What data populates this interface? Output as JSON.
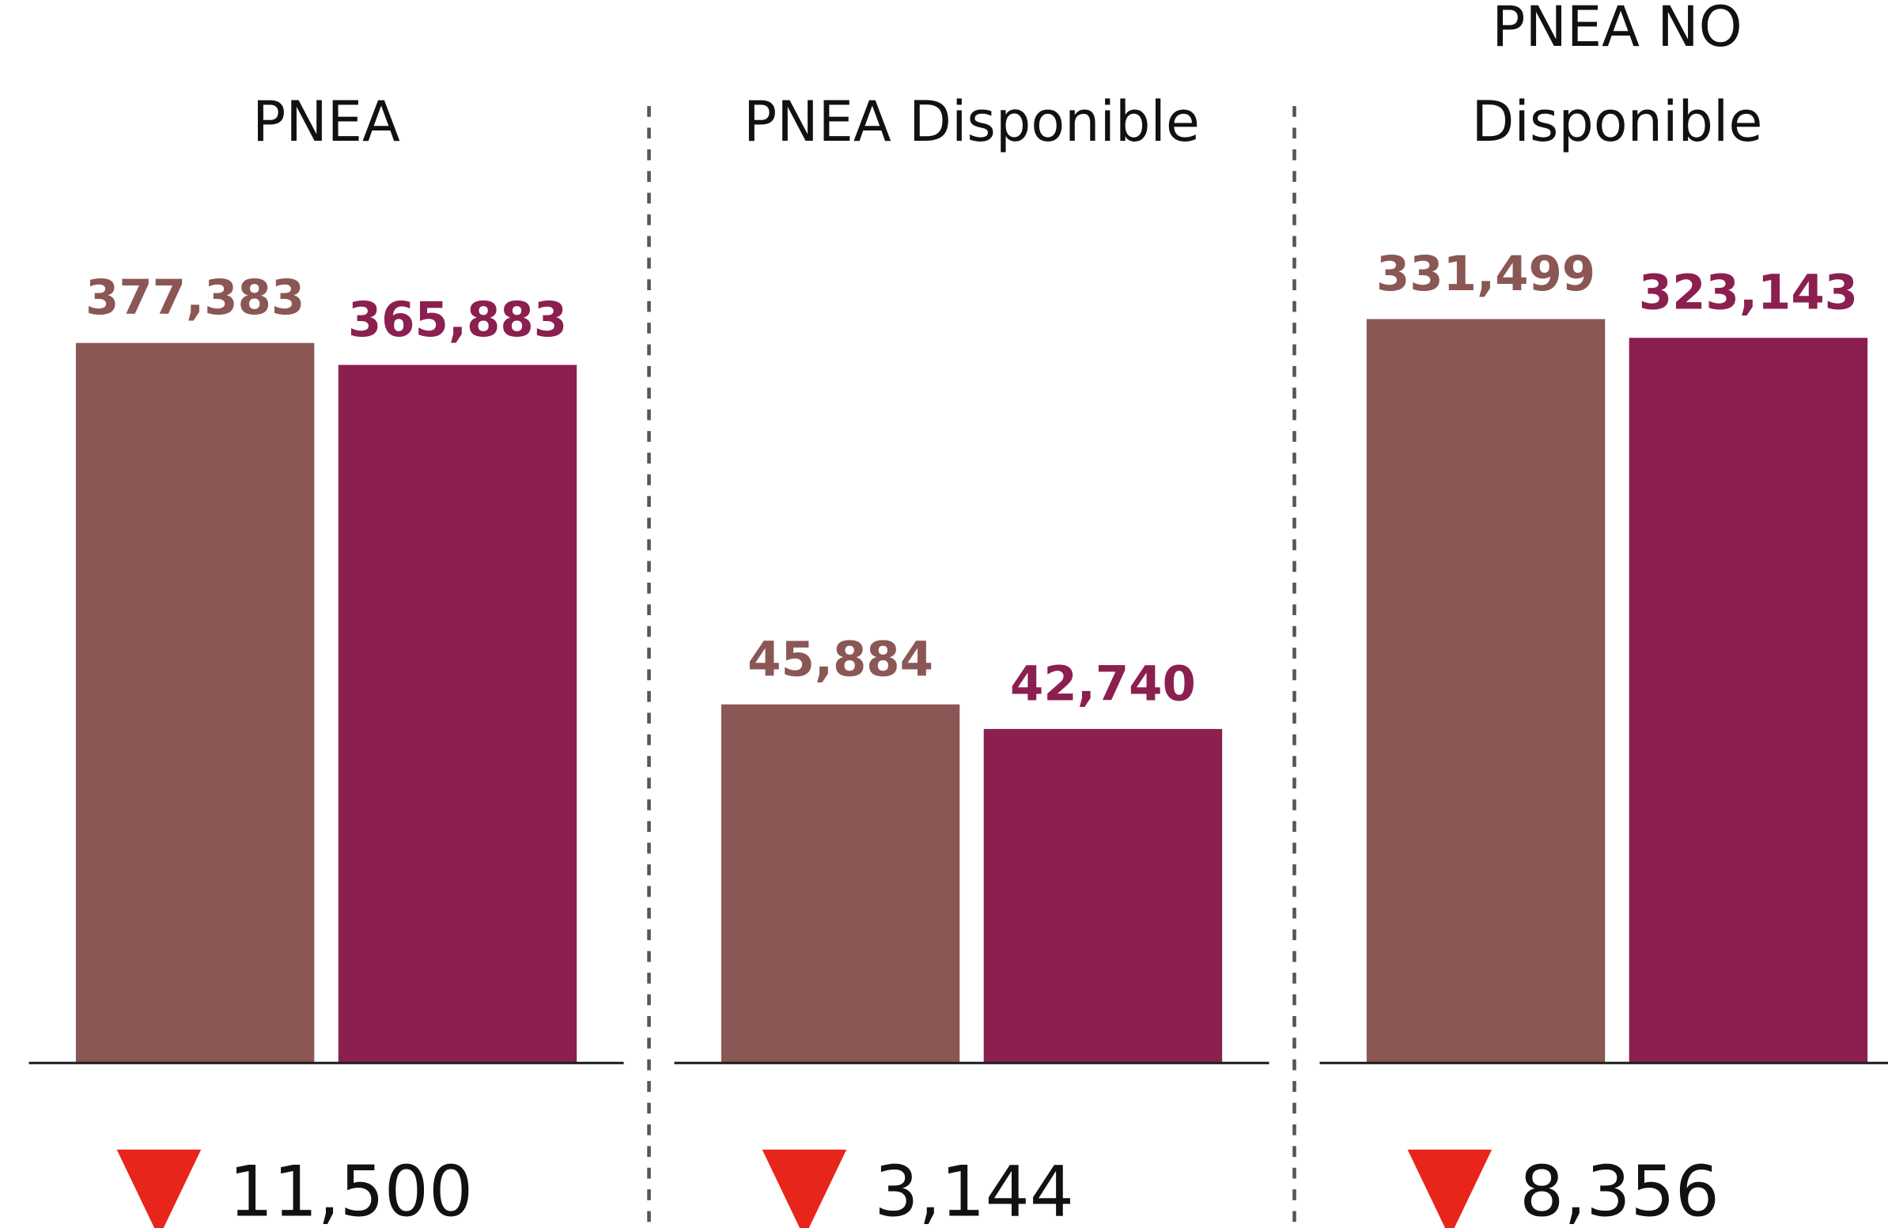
{
  "chart_data": [
    {
      "type": "bar",
      "title": [
        "PNEA"
      ],
      "values": [
        377383,
        365883
      ],
      "value_labels": [
        "377,383",
        "365,883"
      ],
      "colors": [
        "#8a5755",
        "#8b1f4f"
      ],
      "ylim": [
        0,
        494000
      ],
      "change": {
        "value": 11500,
        "label": "11,500"
      },
      "change_color": "#e8251a"
    },
    {
      "type": "bar",
      "title": [
        "PNEA Disponible"
      ],
      "values": [
        45884,
        42740
      ],
      "value_labels": [
        "45,884",
        "42,740"
      ],
      "colors": [
        "#8a5755",
        "#8b1f4f"
      ],
      "ylim": [
        0,
        120600
      ],
      "change": {
        "value": 3144,
        "label": "3,144"
      },
      "change_color": "#e8251a"
    },
    {
      "type": "bar",
      "title": [
        "PNEA NO",
        "Disponible"
      ],
      "values": [
        331499,
        323143
      ],
      "value_labels": [
        "331,499",
        "323,143"
      ],
      "colors": [
        "#8a5755",
        "#8b1f4f"
      ],
      "ylim": [
        0,
        420000
      ],
      "change": {
        "value": 8356,
        "label": "8,356"
      },
      "change_color": "#e8251a"
    }
  ]
}
